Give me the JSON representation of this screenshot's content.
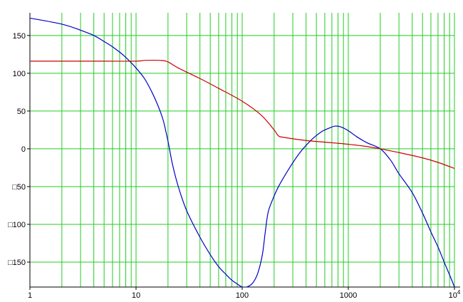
{
  "chart_data": {
    "type": "line",
    "title": "",
    "xlabel": "",
    "ylabel": "",
    "xscale": "log",
    "xlim": [
      1,
      10000
    ],
    "ylim": [
      -183,
      180
    ],
    "grid": true,
    "legend": "none",
    "colors": {
      "grid": "#22cc22",
      "axis": "#000000",
      "series": [
        "#0000cc",
        "#cc0000"
      ]
    },
    "x_ticks": [
      {
        "value": 1,
        "label": "1"
      },
      {
        "value": 10,
        "label": "10"
      },
      {
        "value": 100,
        "label": "100"
      },
      {
        "value": 1000,
        "label": "1000"
      },
      {
        "value": 10000,
        "label": "10",
        "sup": "4"
      }
    ],
    "y_ticks": [
      {
        "value": 150,
        "label": "150"
      },
      {
        "value": 100,
        "label": "100"
      },
      {
        "value": 50,
        "label": "50"
      },
      {
        "value": 0,
        "label": "0"
      },
      {
        "value": -50,
        "label": "□50"
      },
      {
        "value": -100,
        "label": "□100"
      },
      {
        "value": -150,
        "label": "□150"
      }
    ],
    "series": [
      {
        "color": "#0000cc",
        "points": [
          [
            1,
            173
          ],
          [
            2,
            165
          ],
          [
            3,
            157
          ],
          [
            4,
            150
          ],
          [
            5,
            142
          ],
          [
            6,
            135
          ],
          [
            7,
            128
          ],
          [
            8,
            121
          ],
          [
            10,
            107
          ],
          [
            12,
            93
          ],
          [
            14,
            76
          ],
          [
            16,
            58
          ],
          [
            18,
            38
          ],
          [
            20,
            10
          ],
          [
            22,
            -20
          ],
          [
            25,
            -50
          ],
          [
            30,
            -82
          ],
          [
            40,
            -117
          ],
          [
            50,
            -140
          ],
          [
            60,
            -156
          ],
          [
            70,
            -166
          ],
          [
            80,
            -174
          ],
          [
            90,
            -179
          ],
          [
            100,
            -183
          ],
          [
            110,
            -183
          ],
          [
            125,
            -178
          ],
          [
            140,
            -165
          ],
          [
            155,
            -140
          ],
          [
            165,
            -110
          ],
          [
            175,
            -85
          ],
          [
            190,
            -70
          ],
          [
            220,
            -50
          ],
          [
            280,
            -25
          ],
          [
            350,
            -5
          ],
          [
            450,
            12
          ],
          [
            550,
            22
          ],
          [
            650,
            27
          ],
          [
            750,
            30
          ],
          [
            850,
            29
          ],
          [
            1000,
            24
          ],
          [
            1200,
            16
          ],
          [
            1500,
            8
          ],
          [
            2000,
            0
          ],
          [
            2500,
            -15
          ],
          [
            3000,
            -33
          ],
          [
            4000,
            -58
          ],
          [
            5000,
            -85
          ],
          [
            6000,
            -110
          ],
          [
            7000,
            -130
          ],
          [
            8000,
            -150
          ],
          [
            9000,
            -167
          ],
          [
            9500,
            -175
          ],
          [
            10000,
            -183
          ]
        ]
      },
      {
        "color": "#cc0000",
        "points": [
          [
            1,
            116
          ],
          [
            5,
            116
          ],
          [
            10,
            116
          ],
          [
            12,
            117
          ],
          [
            17,
            117
          ],
          [
            20,
            115
          ],
          [
            25,
            107
          ],
          [
            40,
            93
          ],
          [
            60,
            80
          ],
          [
            100,
            63
          ],
          [
            150,
            45
          ],
          [
            200,
            25
          ],
          [
            220,
            17
          ],
          [
            250,
            15
          ],
          [
            400,
            11
          ],
          [
            700,
            8
          ],
          [
            1000,
            6
          ],
          [
            1500,
            3
          ],
          [
            2000,
            0
          ],
          [
            3000,
            -5
          ],
          [
            5000,
            -12
          ],
          [
            7000,
            -18
          ],
          [
            10000,
            -26
          ]
        ]
      }
    ]
  }
}
